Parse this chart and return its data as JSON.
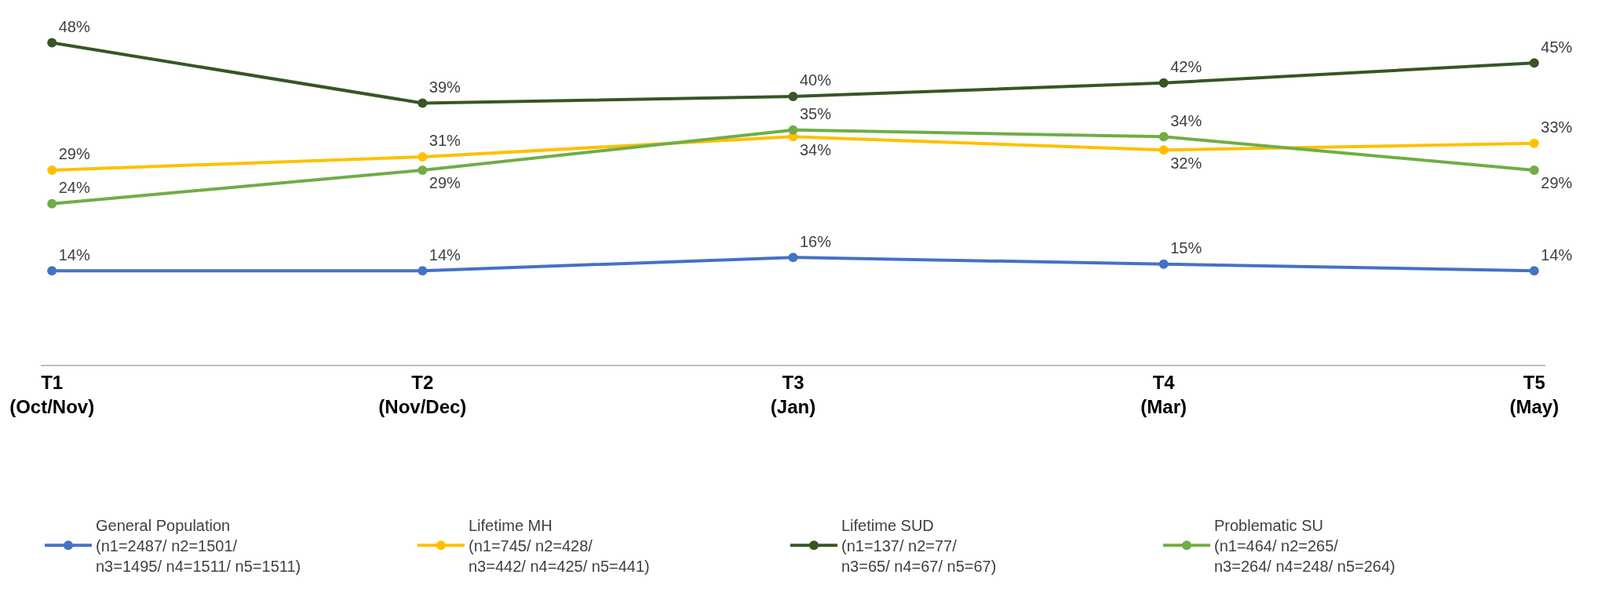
{
  "chart_data": {
    "type": "line",
    "categories": [
      "T1\n(Oct/Nov)",
      "T2\n(Nov/Dec)",
      "T3\n(Jan)",
      "T4\n(Mar)",
      "T5\n(May)"
    ],
    "series": [
      {
        "name": "General Population\n(n1=2487/ n2=1501/\nn3=1495/ n4=1511/ n5=1511)",
        "color": "#4472c4",
        "values": [
          14,
          14,
          16,
          15,
          14
        ],
        "value_labels": [
          "14%",
          "14%",
          "16%",
          "15%",
          "14%"
        ]
      },
      {
        "name": "Lifetime MH\n(n1=745/ n2=428/\nn3=442/ n4=425/ n5=441)",
        "color": "#ffc000",
        "values": [
          29,
          31,
          34,
          32,
          33
        ],
        "value_labels": [
          "29%",
          "31%",
          "34%",
          "32%",
          "33%"
        ]
      },
      {
        "name": "Lifetime SUD\n(n1=137/ n2=77/\nn3=65/ n4=67/ n5=67)",
        "color": "#375623",
        "values": [
          48,
          39,
          40,
          42,
          45
        ],
        "value_labels": [
          "48%",
          "39%",
          "40%",
          "42%",
          "45%"
        ]
      },
      {
        "name": "Problematic SU\n(n1=464/ n2=265/\nn3=264/ n4=248/ n5=264)",
        "color": "#70ad47",
        "values": [
          24,
          29,
          35,
          34,
          29
        ],
        "value_labels": [
          "24%",
          "29%",
          "35%",
          "34%",
          "29%"
        ]
      }
    ],
    "marker": "circle",
    "legend": "bottom"
  }
}
